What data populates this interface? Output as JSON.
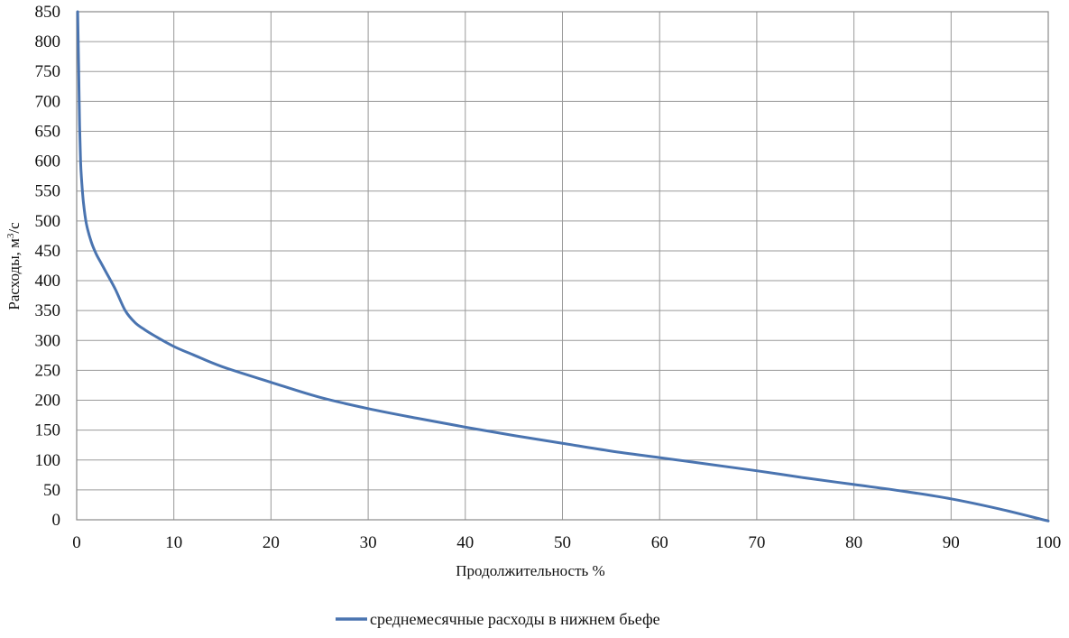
{
  "chart_data": {
    "type": "line",
    "title": "",
    "xlabel": "Продолжительность %",
    "ylabel_main": "Расходы, м",
    "ylabel_sup": "3",
    "ylabel_tail": "/с",
    "xlim": [
      0,
      100
    ],
    "ylim": [
      0,
      850
    ],
    "x_ticks": [
      "0",
      "10",
      "20",
      "30",
      "40",
      "50",
      "60",
      "70",
      "80",
      "90",
      "100"
    ],
    "y_ticks": [
      "0",
      "50",
      "100",
      "150",
      "200",
      "250",
      "300",
      "350",
      "400",
      "450",
      "500",
      "550",
      "600",
      "650",
      "700",
      "750",
      "800",
      "850"
    ],
    "grid": true,
    "legend_position": "bottom",
    "series": [
      {
        "name": "среднемесячные расходы в нижнем бьефе",
        "color": "#4a74b0",
        "x": [
          0.1,
          0.2,
          0.3,
          0.4,
          0.5,
          0.7,
          1,
          1.5,
          2,
          2.5,
          3,
          4,
          5,
          6,
          7,
          8,
          10,
          12,
          15,
          20,
          25,
          30,
          35,
          40,
          45,
          50,
          55,
          60,
          65,
          70,
          75,
          80,
          85,
          90,
          95,
          100
        ],
        "y": [
          850,
          760,
          660,
          600,
          570,
          530,
          495,
          465,
          445,
          430,
          415,
          385,
          350,
          330,
          318,
          308,
          290,
          276,
          256,
          230,
          205,
          186,
          170,
          155,
          141,
          128,
          115,
          104,
          93,
          82,
          70,
          59,
          48,
          35,
          18,
          -2
        ]
      }
    ]
  }
}
